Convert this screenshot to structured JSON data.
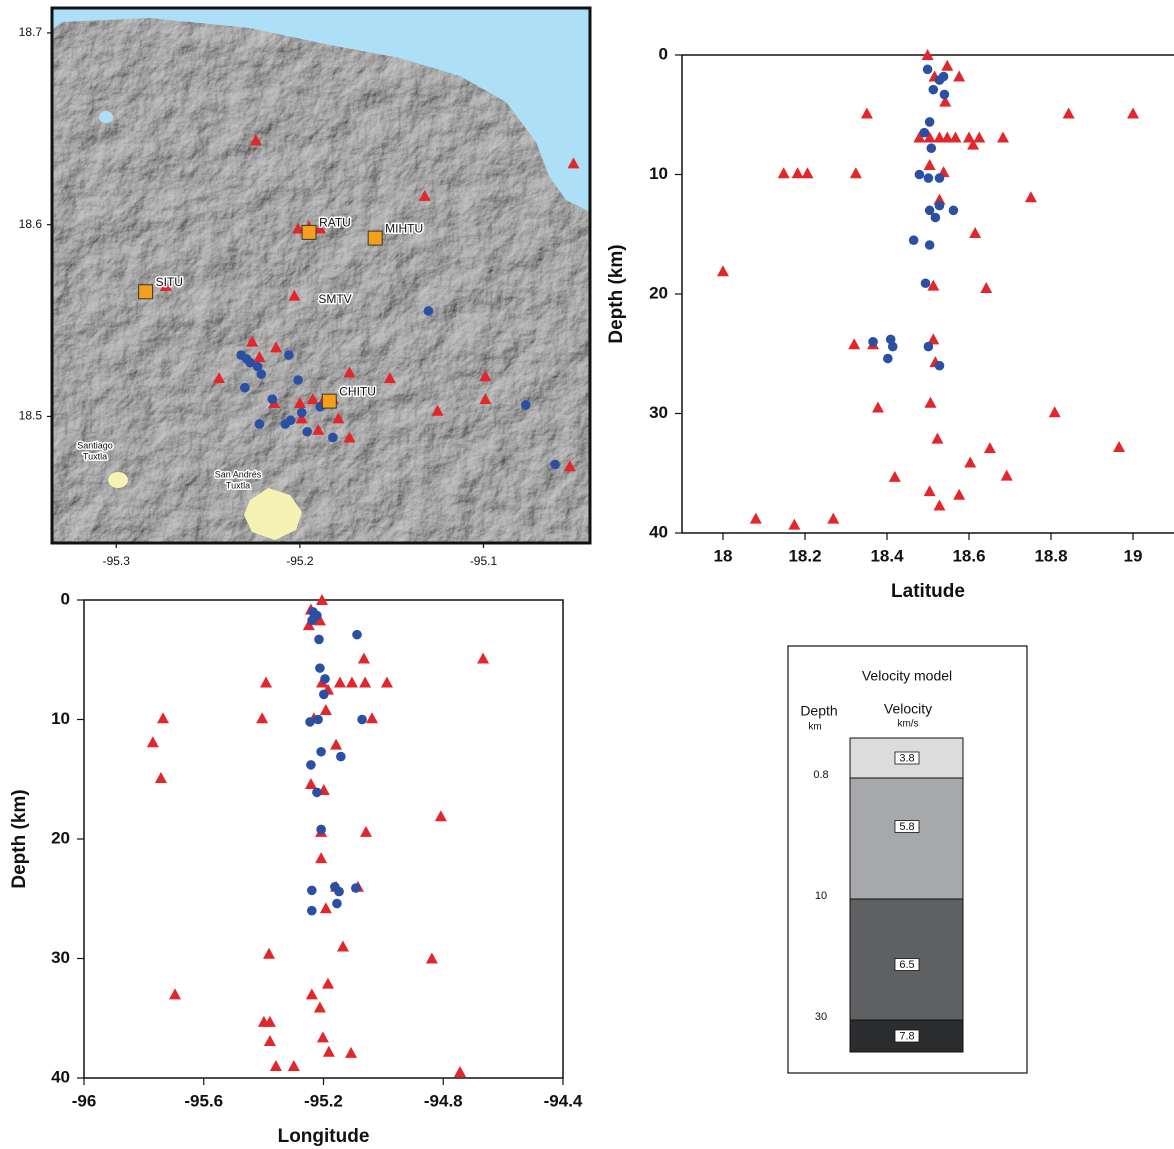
{
  "chart_data": [
    {
      "type": "map",
      "xlim": [
        -95.335,
        -95.042
      ],
      "ylim": [
        18.434,
        18.713
      ],
      "xticks": [
        -95.3,
        -95.2,
        -95.1
      ],
      "yticks": [
        18.5,
        18.6,
        18.7
      ],
      "series": [
        {
          "marker": "triangle",
          "color": "#e3262b",
          "x": [
            -95.224,
            -95.051,
            -95.132,
            -95.201,
            -95.195,
            -95.189,
            -95.273,
            -95.203,
            -95.226,
            -95.213,
            -95.222,
            -95.244,
            -95.173,
            -95.151,
            -95.099,
            -95.214,
            -95.2,
            -95.193,
            -95.188,
            -95.182,
            -95.125,
            -95.099,
            -95.199,
            -95.19,
            -95.179,
            -95.173,
            -95.053
          ],
          "y": [
            18.644,
            18.632,
            18.615,
            18.598,
            18.599,
            18.598,
            18.568,
            18.563,
            18.539,
            18.536,
            18.531,
            18.52,
            18.523,
            18.52,
            18.521,
            18.507,
            18.507,
            18.509,
            18.507,
            18.509,
            18.503,
            18.509,
            18.499,
            18.493,
            18.499,
            18.489,
            18.474
          ]
        },
        {
          "marker": "circle",
          "color": "#2b50a3",
          "x": [
            -95.13,
            -95.232,
            -95.229,
            -95.227,
            -95.223,
            -95.206,
            -95.221,
            -95.201,
            -95.23,
            -95.215,
            -95.199,
            -95.189,
            -95.205,
            -95.208,
            -95.222,
            -95.196,
            -95.182,
            -95.077,
            -95.061
          ],
          "y": [
            18.555,
            18.532,
            18.53,
            18.528,
            18.526,
            18.532,
            18.522,
            18.519,
            18.515,
            18.509,
            18.502,
            18.505,
            18.498,
            18.496,
            18.496,
            18.492,
            18.489,
            18.506,
            18.475
          ]
        }
      ],
      "stations": {
        "color": "#f5a01c",
        "names": [
          "RATU",
          "MIHTU",
          "SITU",
          "CHITU"
        ],
        "x": [
          -95.195,
          -95.159,
          -95.284,
          -95.184
        ],
        "y": [
          18.596,
          18.593,
          18.565,
          18.508
        ]
      },
      "volcano": "SMTV",
      "towns": [
        [
          "Santiago",
          "Tuxtla"
        ],
        [
          "San Andrés",
          "Tuxtla"
        ]
      ]
    },
    {
      "type": "scatter",
      "x_label": "Latitude",
      "y_label": "Depth (km)",
      "xlim": [
        17.9,
        19.1
      ],
      "ylim": [
        0,
        40
      ],
      "y_inverted": true,
      "xticks": [
        18,
        18.2,
        18.4,
        18.6,
        18.8,
        19
      ],
      "yticks": [
        0,
        10,
        20,
        30,
        40
      ],
      "series": [
        {
          "marker": "triangle",
          "color": "#e3262b",
          "x": [
            18.499,
            18.547,
            18.516,
            18.576,
            18.542,
            18.351,
            18.843,
            19.0,
            18.479,
            18.504,
            18.528,
            18.547,
            18.567,
            18.6,
            18.625,
            18.683,
            18.61,
            18.504,
            18.538,
            18.148,
            18.182,
            18.206,
            18.324,
            18.751,
            18.528,
            18.615,
            18.0,
            18.513,
            18.642,
            18.32,
            18.366,
            18.513,
            18.518,
            18.506,
            18.378,
            18.809,
            18.523,
            18.966,
            18.651,
            18.603,
            18.692,
            18.419,
            18.504,
            18.576,
            18.528,
            18.08,
            18.269,
            18.174
          ],
          "y": [
            0,
            0.9,
            1.8,
            1.8,
            3.9,
            4.9,
            4.9,
            4.9,
            6.9,
            6.9,
            6.9,
            6.9,
            6.9,
            6.9,
            6.9,
            6.9,
            7.5,
            9.2,
            9.8,
            9.9,
            9.9,
            9.9,
            9.9,
            11.9,
            12.1,
            14.9,
            18.1,
            19.3,
            19.5,
            24.2,
            24.2,
            23.8,
            25.7,
            29.1,
            29.5,
            29.9,
            32.1,
            32.8,
            32.9,
            34.1,
            35.2,
            35.3,
            36.5,
            36.8,
            37.7,
            38.8,
            38.8,
            39.3
          ]
        },
        {
          "marker": "circle",
          "color": "#2b50a3",
          "x": [
            18.499,
            18.538,
            18.528,
            18.513,
            18.54,
            18.504,
            18.491,
            18.508,
            18.479,
            18.501,
            18.528,
            18.504,
            18.528,
            18.562,
            18.518,
            18.465,
            18.504,
            18.494,
            18.366,
            18.409,
            18.414,
            18.501,
            18.402,
            18.528
          ],
          "y": [
            1.2,
            1.8,
            2.1,
            2.9,
            3.3,
            5.6,
            6.5,
            7.8,
            10.0,
            10.3,
            10.3,
            13.0,
            12.6,
            13.0,
            13.6,
            15.5,
            15.9,
            19.1,
            24.0,
            23.8,
            24.4,
            24.4,
            25.4,
            26.0
          ]
        }
      ]
    },
    {
      "type": "scatter",
      "x_label": "Longitude",
      "y_label": "Depth (km)",
      "xlim": [
        -96,
        -94.4
      ],
      "ylim": [
        0,
        40
      ],
      "y_inverted": true,
      "xticks": [
        -96,
        -95.6,
        -95.2,
        -94.8,
        -94.4
      ],
      "yticks": [
        0,
        10,
        20,
        30,
        40
      ],
      "series": [
        {
          "marker": "triangle",
          "color": "#e3262b",
          "x": [
            -95.205,
            -95.242,
            -95.212,
            -95.249,
            -95.065,
            -94.667,
            -95.392,
            -95.205,
            -95.145,
            -95.105,
            -95.061,
            -94.988,
            -95.185,
            -95.192,
            -95.736,
            -95.405,
            -95.232,
            -95.038,
            -95.77,
            -95.158,
            -95.743,
            -95.242,
            -95.199,
            -94.808,
            -95.208,
            -95.058,
            -95.208,
            -95.158,
            -95.085,
            -95.192,
            -95.135,
            -95.382,
            -94.838,
            -95.696,
            -95.239,
            -95.185,
            -95.212,
            -95.399,
            -95.379,
            -95.379,
            -95.202,
            -95.182,
            -95.108,
            -95.359,
            -95.299,
            -94.744
          ],
          "y": [
            0,
            0.8,
            1.7,
            2.1,
            4.9,
            4.9,
            6.9,
            6.9,
            6.9,
            6.9,
            6.9,
            6.9,
            7.5,
            9.2,
            9.9,
            9.9,
            9.9,
            9.9,
            11.9,
            12.1,
            14.9,
            15.4,
            15.9,
            18.1,
            19.4,
            19.4,
            21.6,
            24.0,
            24.0,
            25.8,
            29.0,
            29.6,
            30.0,
            33.0,
            33.0,
            32.1,
            34.1,
            35.3,
            35.3,
            36.9,
            36.6,
            37.8,
            37.9,
            39.0,
            39.0,
            39.5
          ]
        },
        {
          "marker": "circle",
          "color": "#2b50a3",
          "x": [
            -95.235,
            -95.222,
            -95.238,
            -95.215,
            -95.088,
            -95.212,
            -95.195,
            -95.199,
            -95.071,
            -95.245,
            -95.218,
            -95.208,
            -95.142,
            -95.242,
            -95.222,
            -95.208,
            -95.239,
            -95.162,
            -95.148,
            -95.092,
            -95.239,
            -95.155
          ],
          "y": [
            1.0,
            1.3,
            1.7,
            3.3,
            2.9,
            5.7,
            6.6,
            7.9,
            10.0,
            10.2,
            10.0,
            12.7,
            13.1,
            13.8,
            16.1,
            19.2,
            24.3,
            24.0,
            24.4,
            24.1,
            26.0,
            25.4
          ]
        }
      ]
    }
  ],
  "velocity_model": {
    "title": "Velocity model",
    "depth_header": "Depth",
    "depth_unit": "km",
    "velocity_header": "Velocity",
    "velocity_unit": "km/s",
    "depths": [
      0.8,
      10,
      30
    ],
    "velocities": [
      3.8,
      5.8,
      6.5,
      7.8
    ],
    "colors": [
      "#dcdcdc",
      "#a7a8a9",
      "#5e6061",
      "#2b2c2e"
    ]
  }
}
